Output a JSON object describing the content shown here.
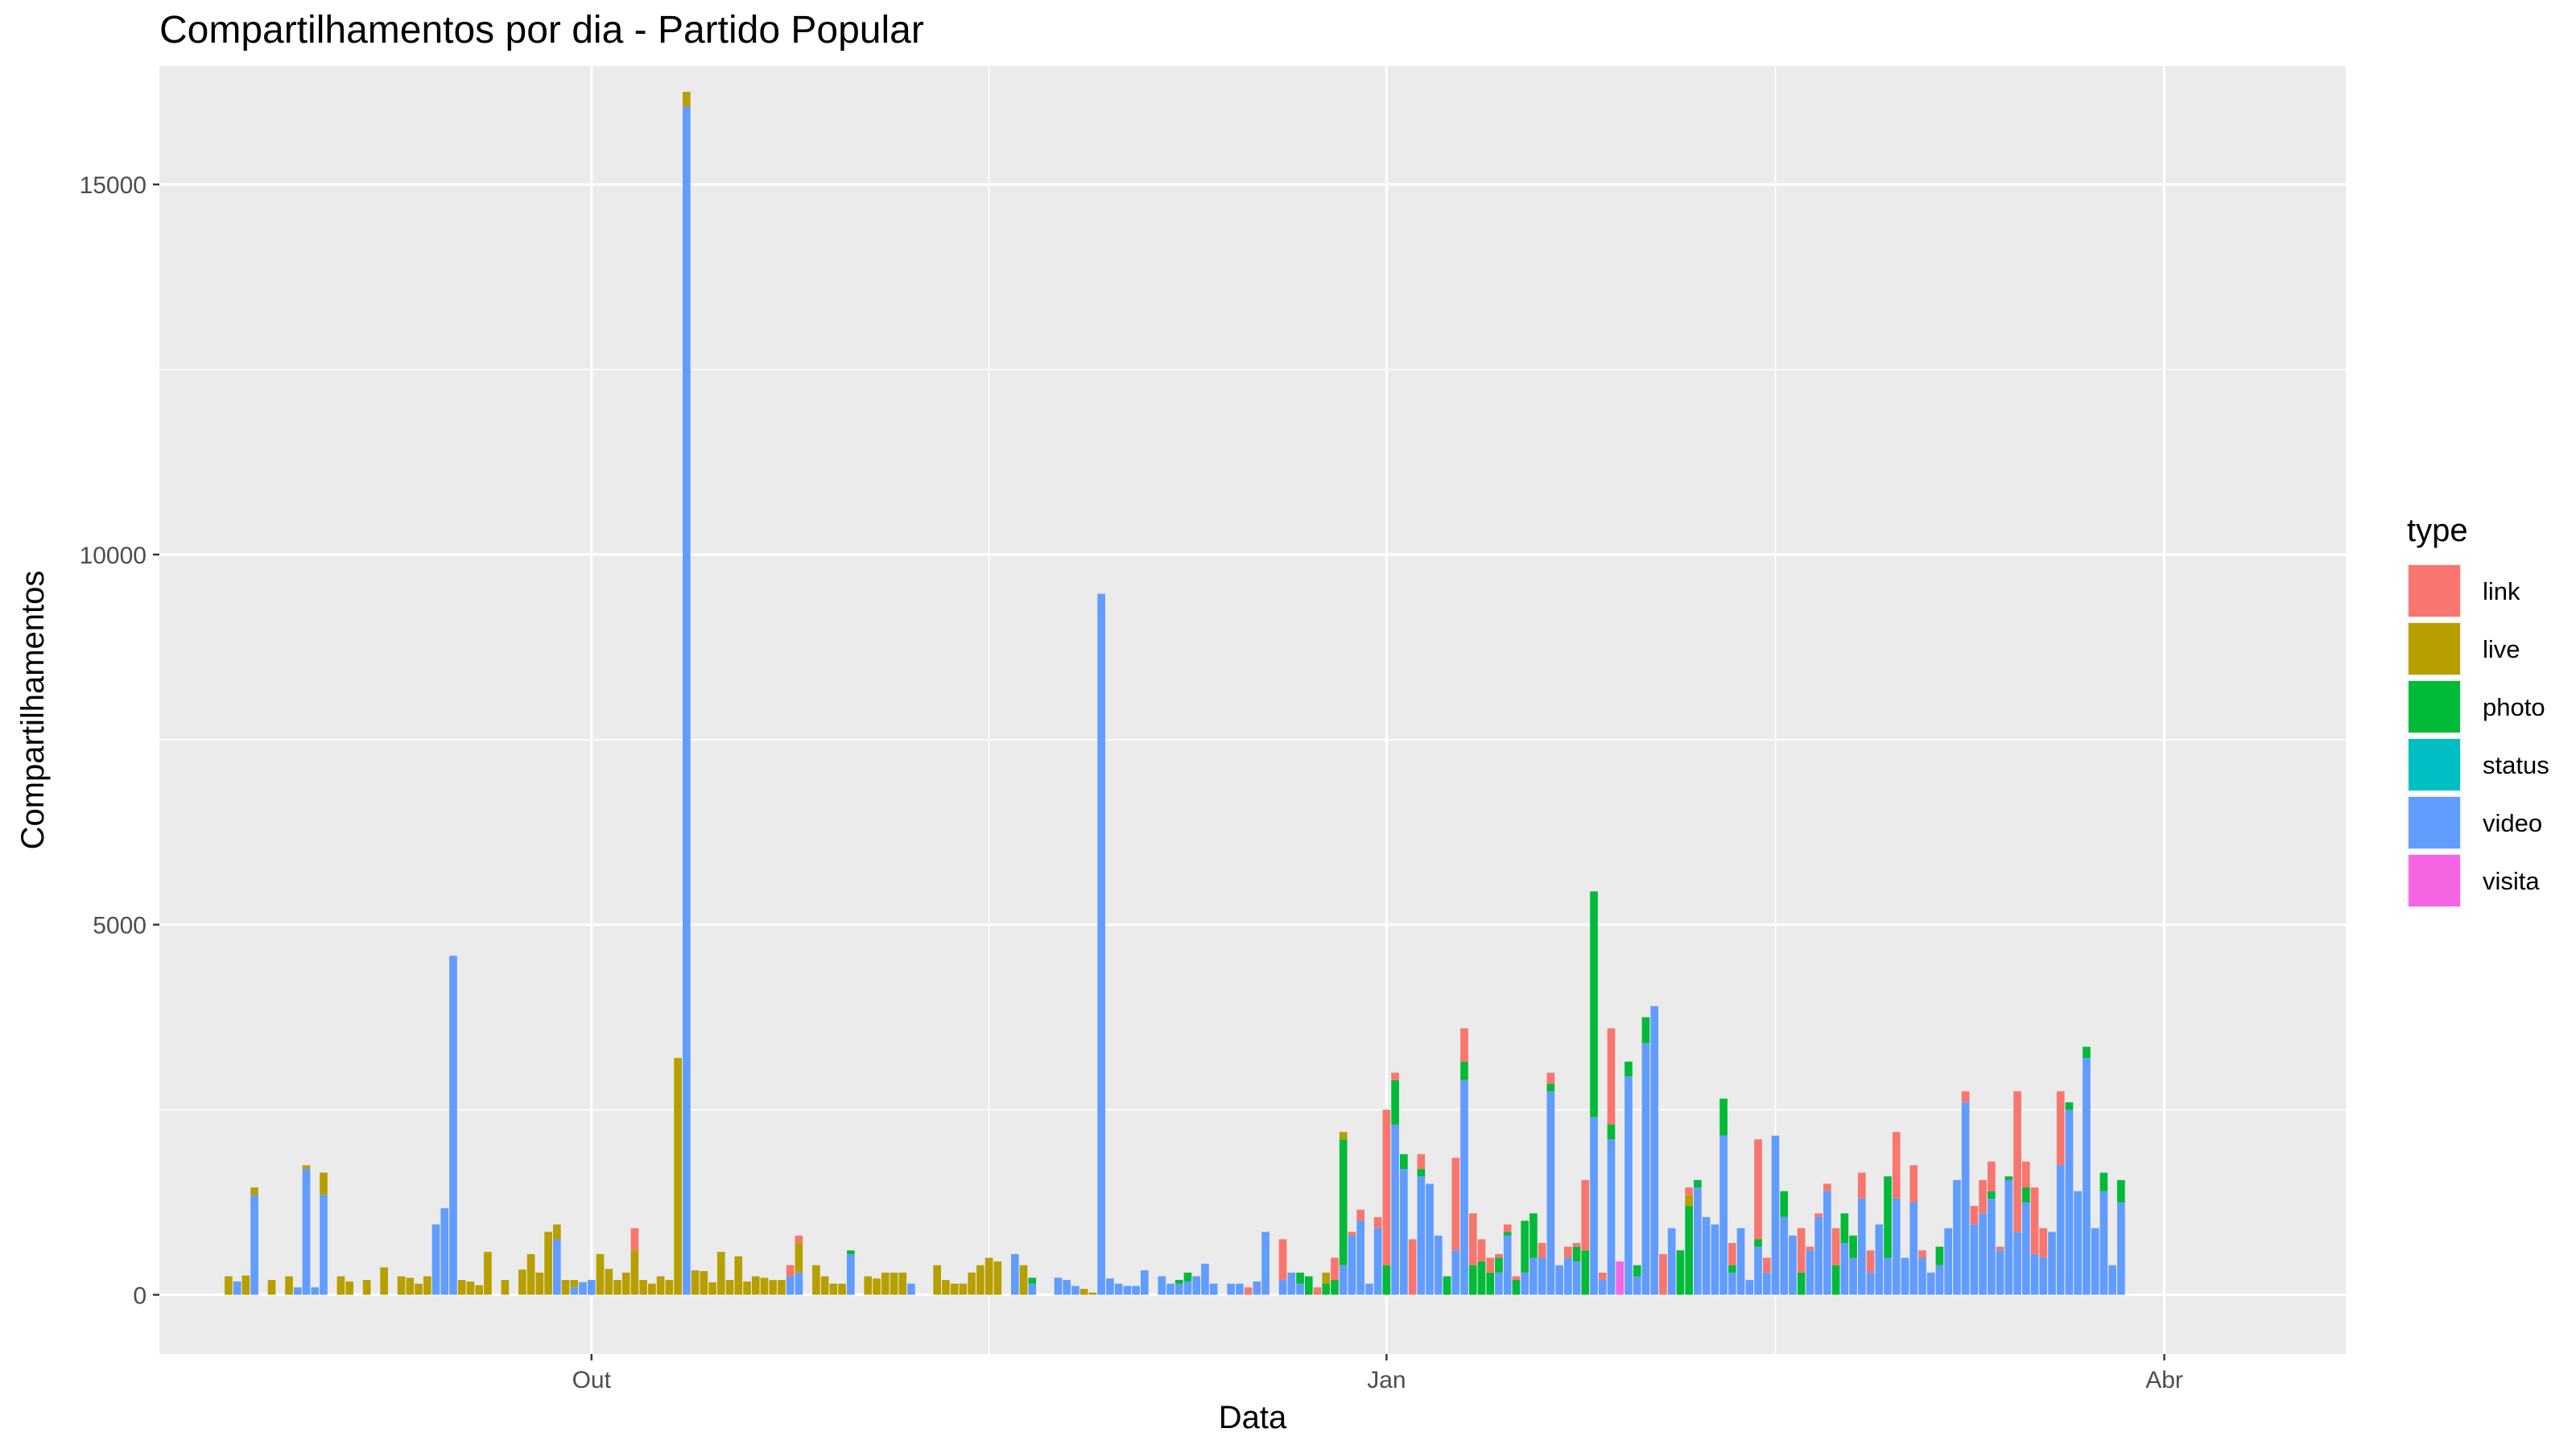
{
  "chart_data": {
    "type": "bar",
    "stacked": true,
    "title": "Compartilhamentos por dia - Partido Popular",
    "xlabel": "Data",
    "ylabel": "Compartilhamentos",
    "ylim": [
      -800,
      16600
    ],
    "yticks": [
      0,
      5000,
      10000,
      15000
    ],
    "xticks": [
      {
        "label": "Out",
        "date": "2018-10-01"
      },
      {
        "label": "Jan",
        "date": "2019-01-01"
      },
      {
        "label": "Abr",
        "date": "2019-04-01"
      }
    ],
    "xlim": [
      "2018-08-12",
      "2019-04-22"
    ],
    "grid": true,
    "legend": {
      "title": "type",
      "position": "right",
      "entries": [
        {
          "name": "link",
          "color": "#F8766D"
        },
        {
          "name": "live",
          "color": "#B79F00"
        },
        {
          "name": "photo",
          "color": "#00BA38"
        },
        {
          "name": "status",
          "color": "#00BFC4"
        },
        {
          "name": "video",
          "color": "#619CFF"
        },
        {
          "name": "visita",
          "color": "#F564E3"
        }
      ]
    },
    "stack_order": [
      "visita",
      "video",
      "status",
      "photo",
      "live",
      "link"
    ],
    "days": [
      {
        "date": "2018-08-20",
        "live": 250
      },
      {
        "date": "2018-08-21",
        "video": 180
      },
      {
        "date": "2018-08-22",
        "live": 260
      },
      {
        "date": "2018-08-23",
        "video": 1350,
        "live": 100
      },
      {
        "date": "2018-08-25",
        "live": 200
      },
      {
        "date": "2018-08-27",
        "live": 250
      },
      {
        "date": "2018-08-28",
        "video": 100
      },
      {
        "date": "2018-08-29",
        "video": 1700,
        "live": 50
      },
      {
        "date": "2018-08-30",
        "video": 100
      },
      {
        "date": "2018-08-31",
        "video": 1350,
        "live": 300
      },
      {
        "date": "2018-09-02",
        "live": 250
      },
      {
        "date": "2018-09-03",
        "live": 180
      },
      {
        "date": "2018-09-05",
        "live": 200
      },
      {
        "date": "2018-09-07",
        "live": 370
      },
      {
        "date": "2018-09-09",
        "live": 250
      },
      {
        "date": "2018-09-10",
        "live": 230
      },
      {
        "date": "2018-09-11",
        "live": 150
      },
      {
        "date": "2018-09-12",
        "live": 250
      },
      {
        "date": "2018-09-13",
        "video": 950
      },
      {
        "date": "2018-09-14",
        "video": 1170
      },
      {
        "date": "2018-09-15",
        "video": 4580
      },
      {
        "date": "2018-09-16",
        "live": 200
      },
      {
        "date": "2018-09-17",
        "live": 180
      },
      {
        "date": "2018-09-18",
        "live": 130
      },
      {
        "date": "2018-09-19",
        "live": 580
      },
      {
        "date": "2018-09-21",
        "live": 200
      },
      {
        "date": "2018-09-23",
        "live": 340
      },
      {
        "date": "2018-09-24",
        "live": 550
      },
      {
        "date": "2018-09-25",
        "live": 300
      },
      {
        "date": "2018-09-26",
        "live": 850
      },
      {
        "date": "2018-09-27",
        "video": 750,
        "live": 200
      },
      {
        "date": "2018-09-28",
        "live": 200
      },
      {
        "date": "2018-09-29",
        "video": 100,
        "live": 100
      },
      {
        "date": "2018-09-30",
        "video": 170
      },
      {
        "date": "2018-10-01",
        "video": 200
      },
      {
        "date": "2018-10-02",
        "live": 550
      },
      {
        "date": "2018-10-03",
        "live": 350
      },
      {
        "date": "2018-10-04",
        "live": 200
      },
      {
        "date": "2018-10-05",
        "live": 300
      },
      {
        "date": "2018-10-06",
        "live": 600,
        "link": 300
      },
      {
        "date": "2018-10-07",
        "live": 200
      },
      {
        "date": "2018-10-08",
        "live": 150
      },
      {
        "date": "2018-10-09",
        "live": 250
      },
      {
        "date": "2018-10-10",
        "live": 200
      },
      {
        "date": "2018-10-11",
        "live": 3200
      },
      {
        "date": "2018-10-12",
        "video": 16050,
        "live": 200
      },
      {
        "date": "2018-10-13",
        "live": 330
      },
      {
        "date": "2018-10-14",
        "live": 320
      },
      {
        "date": "2018-10-15",
        "live": 170
      },
      {
        "date": "2018-10-16",
        "live": 580
      },
      {
        "date": "2018-10-17",
        "live": 200
      },
      {
        "date": "2018-10-18",
        "live": 520
      },
      {
        "date": "2018-10-19",
        "live": 180
      },
      {
        "date": "2018-10-20",
        "live": 250
      },
      {
        "date": "2018-10-21",
        "live": 230
      },
      {
        "date": "2018-10-22",
        "live": 200
      },
      {
        "date": "2018-10-23",
        "live": 200
      },
      {
        "date": "2018-10-24",
        "video": 250,
        "link": 150
      },
      {
        "date": "2018-10-25",
        "video": 300,
        "live": 400,
        "link": 100
      },
      {
        "date": "2018-10-27",
        "live": 400
      },
      {
        "date": "2018-10-28",
        "live": 250
      },
      {
        "date": "2018-10-29",
        "live": 150
      },
      {
        "date": "2018-10-30",
        "live": 150
      },
      {
        "date": "2018-10-31",
        "video": 550,
        "photo": 50
      },
      {
        "date": "2018-11-02",
        "live": 250
      },
      {
        "date": "2018-11-03",
        "live": 220
      },
      {
        "date": "2018-11-04",
        "live": 300
      },
      {
        "date": "2018-11-05",
        "live": 300
      },
      {
        "date": "2018-11-06",
        "live": 300
      },
      {
        "date": "2018-11-07",
        "video": 150
      },
      {
        "date": "2018-11-10",
        "live": 400
      },
      {
        "date": "2018-11-11",
        "live": 200
      },
      {
        "date": "2018-11-12",
        "live": 150
      },
      {
        "date": "2018-11-13",
        "live": 150
      },
      {
        "date": "2018-11-14",
        "live": 300
      },
      {
        "date": "2018-11-15",
        "live": 400
      },
      {
        "date": "2018-11-16",
        "live": 500
      },
      {
        "date": "2018-11-17",
        "live": 450
      },
      {
        "date": "2018-11-19",
        "video": 550
      },
      {
        "date": "2018-11-20",
        "live": 400
      },
      {
        "date": "2018-11-21",
        "video": 150,
        "photo": 80
      },
      {
        "date": "2018-11-24",
        "video": 230
      },
      {
        "date": "2018-11-25",
        "video": 200
      },
      {
        "date": "2018-11-26",
        "video": 120
      },
      {
        "date": "2018-11-27",
        "live": 80
      },
      {
        "date": "2018-11-28",
        "live": 30
      },
      {
        "date": "2018-11-29",
        "video": 9470
      },
      {
        "date": "2018-11-30",
        "video": 220
      },
      {
        "date": "2018-12-01",
        "video": 150
      },
      {
        "date": "2018-12-02",
        "video": 120
      },
      {
        "date": "2018-12-03",
        "video": 120
      },
      {
        "date": "2018-12-04",
        "video": 330
      },
      {
        "date": "2018-12-06",
        "video": 250
      },
      {
        "date": "2018-12-07",
        "video": 150
      },
      {
        "date": "2018-12-08",
        "video": 150,
        "photo": 50
      },
      {
        "date": "2018-12-09",
        "video": 180,
        "photo": 120
      },
      {
        "date": "2018-12-10",
        "video": 250
      },
      {
        "date": "2018-12-11",
        "video": 420
      },
      {
        "date": "2018-12-12",
        "video": 150
      },
      {
        "date": "2018-12-14",
        "video": 150
      },
      {
        "date": "2018-12-15",
        "video": 150
      },
      {
        "date": "2018-12-16",
        "link": 100
      },
      {
        "date": "2018-12-17",
        "video": 180
      },
      {
        "date": "2018-12-18",
        "video": 850
      },
      {
        "date": "2018-12-20",
        "video": 200,
        "link": 550
      },
      {
        "date": "2018-12-21",
        "video": 300
      },
      {
        "date": "2018-12-22",
        "video": 150,
        "photo": 150
      },
      {
        "date": "2018-12-23",
        "photo": 250
      },
      {
        "date": "2018-12-24",
        "link": 100
      },
      {
        "date": "2018-12-25",
        "photo": 150,
        "live": 150
      },
      {
        "date": "2018-12-26",
        "photo": 200,
        "link": 300
      },
      {
        "date": "2018-12-27",
        "video": 400,
        "photo": 1700,
        "live": 100
      },
      {
        "date": "2018-12-28",
        "video": 800,
        "link": 50
      },
      {
        "date": "2018-12-29",
        "video": 1000,
        "link": 150
      },
      {
        "date": "2018-12-30",
        "video": 150
      },
      {
        "date": "2018-12-31",
        "video": 900,
        "link": 150
      },
      {
        "date": "2019-01-01",
        "photo": 400,
        "link": 2100
      },
      {
        "date": "2019-01-02",
        "video": 2300,
        "photo": 600,
        "link": 100
      },
      {
        "date": "2019-01-03",
        "video": 1700,
        "photo": 200
      },
      {
        "date": "2019-01-04",
        "link": 750
      },
      {
        "date": "2019-01-05",
        "video": 1600,
        "photo": 100,
        "link": 200
      },
      {
        "date": "2019-01-06",
        "video": 1500
      },
      {
        "date": "2019-01-07",
        "video": 800
      },
      {
        "date": "2019-01-08",
        "photo": 250
      },
      {
        "date": "2019-01-09",
        "video": 600,
        "link": 1250
      },
      {
        "date": "2019-01-10",
        "video": 2900,
        "photo": 250,
        "link": 450
      },
      {
        "date": "2019-01-11",
        "photo": 400,
        "link": 700
      },
      {
        "date": "2019-01-12",
        "photo": 450,
        "link": 300
      },
      {
        "date": "2019-01-13",
        "photo": 300,
        "link": 200
      },
      {
        "date": "2019-01-14",
        "video": 300,
        "photo": 200,
        "link": 50
      },
      {
        "date": "2019-01-15",
        "video": 800,
        "photo": 50,
        "link": 100
      },
      {
        "date": "2019-01-16",
        "photo": 200,
        "link": 50
      },
      {
        "date": "2019-01-17",
        "video": 300,
        "photo": 700
      },
      {
        "date": "2019-01-18",
        "video": 500,
        "photo": 600
      },
      {
        "date": "2019-01-19",
        "video": 500,
        "link": 200
      },
      {
        "date": "2019-01-20",
        "video": 2750,
        "photo": 100,
        "link": 150
      },
      {
        "date": "2019-01-21",
        "video": 400
      },
      {
        "date": "2019-01-22",
        "video": 500,
        "link": 150
      },
      {
        "date": "2019-01-23",
        "video": 450,
        "photo": 200,
        "link": 50
      },
      {
        "date": "2019-01-24",
        "photo": 600,
        "link": 950
      },
      {
        "date": "2019-01-25",
        "video": 2400,
        "photo": 3050
      },
      {
        "date": "2019-01-26",
        "video": 200,
        "link": 100
      },
      {
        "date": "2019-01-27",
        "video": 2100,
        "photo": 200,
        "link": 1300
      },
      {
        "date": "2019-01-28",
        "visita": 450
      },
      {
        "date": "2019-01-29",
        "video": 2950,
        "photo": 200
      },
      {
        "date": "2019-01-30",
        "video": 250,
        "photo": 150
      },
      {
        "date": "2019-01-31",
        "video": 3400,
        "photo": 350
      },
      {
        "date": "2019-02-01",
        "video": 3900
      },
      {
        "date": "2019-02-02",
        "link": 550
      },
      {
        "date": "2019-02-03",
        "video": 900
      },
      {
        "date": "2019-02-04",
        "photo": 600
      },
      {
        "date": "2019-02-05",
        "photo": 1200,
        "live": 150,
        "link": 100
      },
      {
        "date": "2019-02-06",
        "video": 1450,
        "photo": 100
      },
      {
        "date": "2019-02-07",
        "video": 1050
      },
      {
        "date": "2019-02-08",
        "video": 950
      },
      {
        "date": "2019-02-09",
        "video": 2150,
        "photo": 500
      },
      {
        "date": "2019-02-10",
        "video": 300,
        "photo": 100,
        "link": 300
      },
      {
        "date": "2019-02-11",
        "video": 900
      },
      {
        "date": "2019-02-12",
        "video": 200
      },
      {
        "date": "2019-02-13",
        "video": 650,
        "photo": 100,
        "link": 1350
      },
      {
        "date": "2019-02-14",
        "video": 300,
        "link": 200
      },
      {
        "date": "2019-02-15",
        "video": 2150
      },
      {
        "date": "2019-02-16",
        "video": 1050,
        "photo": 350
      },
      {
        "date": "2019-02-17",
        "video": 800
      },
      {
        "date": "2019-02-18",
        "photo": 300,
        "link": 600
      },
      {
        "date": "2019-02-19",
        "video": 600,
        "link": 50
      },
      {
        "date": "2019-02-20",
        "video": 1050,
        "link": 50
      },
      {
        "date": "2019-02-21",
        "video": 1400,
        "link": 100
      },
      {
        "date": "2019-02-22",
        "photo": 400,
        "link": 500
      },
      {
        "date": "2019-02-23",
        "video": 700,
        "photo": 400
      },
      {
        "date": "2019-02-24",
        "video": 500,
        "photo": 300
      },
      {
        "date": "2019-02-25",
        "video": 1300,
        "link": 350
      },
      {
        "date": "2019-02-26",
        "video": 300,
        "link": 300
      },
      {
        "date": "2019-02-27",
        "video": 950
      },
      {
        "date": "2019-02-28",
        "video": 500,
        "photo": 1100
      },
      {
        "date": "2019-03-01",
        "video": 1300,
        "link": 900
      },
      {
        "date": "2019-03-02",
        "video": 500
      },
      {
        "date": "2019-03-03",
        "video": 1250,
        "link": 500
      },
      {
        "date": "2019-03-04",
        "video": 500,
        "link": 100
      },
      {
        "date": "2019-03-05",
        "video": 300
      },
      {
        "date": "2019-03-06",
        "video": 400,
        "photo": 250
      },
      {
        "date": "2019-03-07",
        "video": 900
      },
      {
        "date": "2019-03-08",
        "video": 1550
      },
      {
        "date": "2019-03-09",
        "video": 2600,
        "link": 150
      },
      {
        "date": "2019-03-10",
        "video": 950,
        "link": 250
      },
      {
        "date": "2019-03-11",
        "video": 1100,
        "link": 450
      },
      {
        "date": "2019-03-12",
        "video": 1300,
        "photo": 100,
        "link": 400
      },
      {
        "date": "2019-03-13",
        "video": 600,
        "link": 50
      },
      {
        "date": "2019-03-14",
        "video": 1550,
        "photo": 50
      },
      {
        "date": "2019-03-15",
        "video": 850,
        "link": 1900
      },
      {
        "date": "2019-03-16",
        "video": 1250,
        "photo": 200,
        "link": 350
      },
      {
        "date": "2019-03-17",
        "video": 550,
        "link": 900
      },
      {
        "date": "2019-03-18",
        "video": 500,
        "link": 400
      },
      {
        "date": "2019-03-19",
        "video": 850
      },
      {
        "date": "2019-03-20",
        "video": 1750,
        "link": 1000
      },
      {
        "date": "2019-03-21",
        "video": 2500,
        "photo": 100
      },
      {
        "date": "2019-03-22",
        "video": 1400
      },
      {
        "date": "2019-03-23",
        "video": 3200,
        "photo": 150
      },
      {
        "date": "2019-03-24",
        "video": 900
      },
      {
        "date": "2019-03-25",
        "video": 1400,
        "photo": 250
      },
      {
        "date": "2019-03-26",
        "video": 400
      },
      {
        "date": "2019-03-27",
        "video": 1250,
        "photo": 300
      }
    ]
  }
}
